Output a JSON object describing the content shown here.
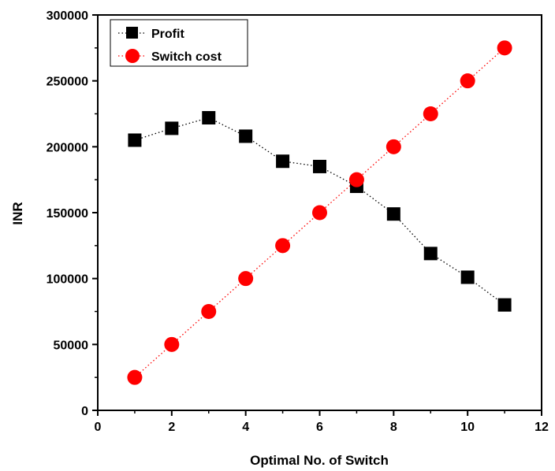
{
  "chart_data": {
    "type": "scatter",
    "xlabel": "Optimal No. of Switch",
    "ylabel": "INR",
    "xlim": [
      0,
      12
    ],
    "ylim": [
      0,
      300000
    ],
    "xticks": [
      0,
      2,
      4,
      6,
      8,
      10,
      12
    ],
    "yticks": [
      0,
      50000,
      100000,
      150000,
      200000,
      250000,
      300000
    ],
    "grid": false,
    "legend_position": "top-left",
    "x": [
      1,
      2,
      3,
      4,
      5,
      6,
      7,
      8,
      9,
      10,
      11
    ],
    "series": [
      {
        "name": "Profit",
        "marker": "square",
        "color": "#000000",
        "line_style": "dotted",
        "values": [
          205000,
          214000,
          222000,
          208000,
          189000,
          185000,
          170000,
          149000,
          119000,
          101000,
          80000
        ]
      },
      {
        "name": "Switch cost",
        "marker": "circle",
        "color": "#ff0000",
        "line_style": "dotted",
        "values": [
          25000,
          50000,
          75000,
          100000,
          125000,
          150000,
          175000,
          200000,
          225000,
          250000,
          275000
        ]
      }
    ]
  }
}
